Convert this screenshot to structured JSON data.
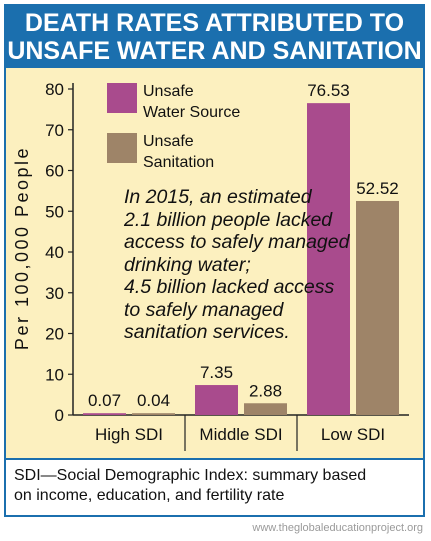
{
  "title": {
    "line1": "DEATH RATES ATTRIBUTED TO",
    "line2": "UNSAFE WATER AND SANITATION"
  },
  "annotation": {
    "lines": [
      "In 2015, an estimated",
      "2.1 billion people lacked",
      "access to safely managed",
      "drinking water;",
      "4.5 billion lacked access",
      "to safely managed",
      "sanitation services."
    ]
  },
  "footnote": {
    "line1": "SDI—Social Demographic Index: summary based",
    "line2": "on income, education, and fertility rate"
  },
  "credit": "www.theglobaleducationproject.org",
  "colors": {
    "frame": "#1b6fae",
    "background": "#fcf0bf",
    "water": "#a94b8d",
    "sanitation": "#9e8468"
  },
  "chart_data": {
    "type": "bar",
    "title": "DEATH RATES ATTRIBUTED TO UNSAFE WATER AND SANITATION",
    "categories": [
      "High SDI",
      "Middle SDI",
      "Low SDI"
    ],
    "series": [
      {
        "name": "Unsafe Water Source",
        "legend_lines": [
          "Unsafe",
          "Water Source"
        ],
        "values": [
          0.07,
          7.35,
          76.53
        ],
        "labels": [
          "0.07",
          "7.35",
          "76.53"
        ],
        "color": "#a94b8d"
      },
      {
        "name": "Unsafe Sanitation",
        "legend_lines": [
          "Unsafe",
          "Sanitation"
        ],
        "values": [
          0.04,
          2.88,
          52.52
        ],
        "labels": [
          "0.04",
          "2.88",
          "52.52"
        ],
        "color": "#9e8468"
      }
    ],
    "xlabel": "",
    "ylabel": "Per 100,000 People",
    "ylim": [
      0,
      80
    ],
    "yticks": [
      0,
      10,
      20,
      30,
      40,
      50,
      60,
      70,
      80
    ],
    "grid": false,
    "legend_position": "top-left"
  }
}
